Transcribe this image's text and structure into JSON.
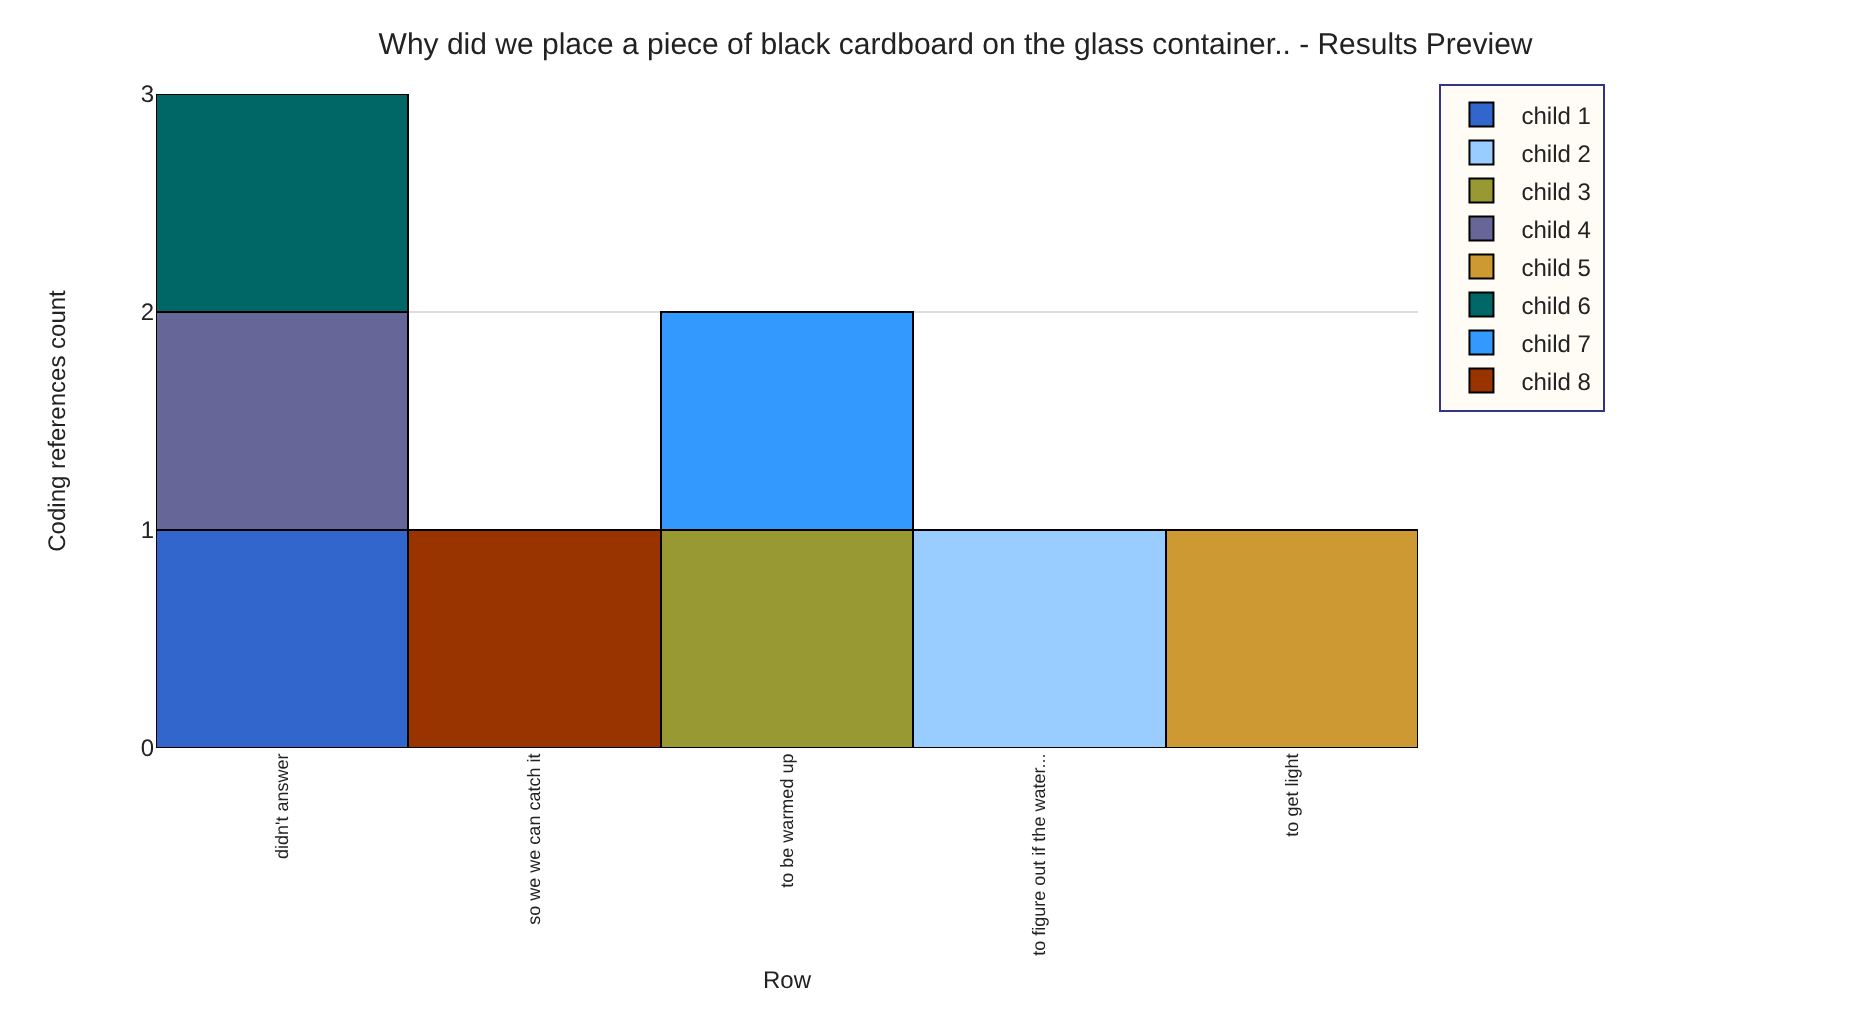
{
  "chart_data": {
    "type": "bar",
    "title": "Why did we place a piece of black cardboard on the glass container.. - Results Preview",
    "xlabel": "Row",
    "ylabel": "Coding references count",
    "categories": [
      "didn't answer",
      "so we we can catch it",
      "to be warmed up",
      "to figure out if the water...",
      "to get light"
    ],
    "series": [
      {
        "name": "child 1",
        "color": "#3366cc",
        "values": [
          1,
          null,
          null,
          null,
          null
        ]
      },
      {
        "name": "child 2",
        "color": "#99ccff",
        "values": [
          null,
          null,
          null,
          1,
          null
        ]
      },
      {
        "name": "child 3",
        "color": "#999933",
        "values": [
          null,
          null,
          1,
          null,
          null
        ]
      },
      {
        "name": "child 4",
        "color": "#666699",
        "values": [
          1,
          null,
          null,
          null,
          null
        ]
      },
      {
        "name": "child 5",
        "color": "#cc9933",
        "values": [
          null,
          null,
          null,
          null,
          1
        ]
      },
      {
        "name": "child 6",
        "color": "#006666",
        "values": [
          1,
          null,
          null,
          null,
          null
        ]
      },
      {
        "name": "child 7",
        "color": "#3399ff",
        "values": [
          null,
          null,
          1,
          null,
          null
        ]
      },
      {
        "name": "child 8",
        "color": "#993300",
        "values": [
          null,
          1,
          null,
          null,
          null
        ]
      }
    ],
    "stacked": true,
    "ylim": [
      0,
      3
    ],
    "yticks": [
      0,
      1,
      2,
      3
    ],
    "grid": "y",
    "legend": "top right"
  }
}
